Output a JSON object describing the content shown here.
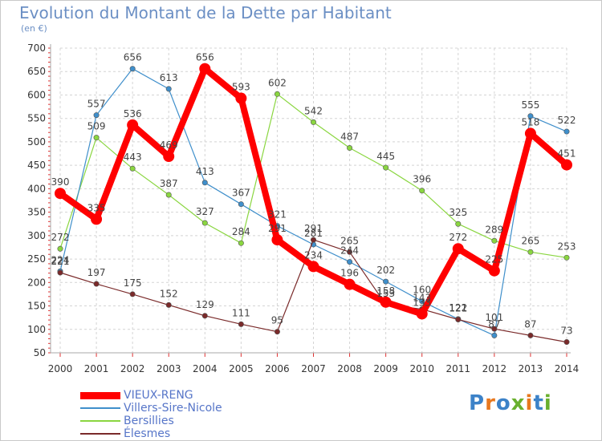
{
  "header": {
    "title": "Evolution du Montant de la Dette par Habitant",
    "unit": "(en €)"
  },
  "logo": {
    "text": "Proxiti",
    "colors": [
      "#3c82c8",
      "#e8781e",
      "#3c82c8",
      "#6ab02e",
      "#e8781e",
      "#3c82c8",
      "#6ab02e"
    ]
  },
  "chart_data": {
    "type": "line",
    "title": "Evolution du Montant de la Dette par Habitant",
    "ylabel": "(en €)",
    "xlabel": "",
    "x": [
      "2000",
      "2001",
      "2002",
      "2003",
      "2004",
      "2005",
      "2006",
      "2007",
      "2008",
      "2009",
      "2010",
      "2011",
      "2012",
      "2013",
      "2014"
    ],
    "ylim": [
      50,
      700
    ],
    "yticks": [
      50,
      100,
      150,
      200,
      250,
      300,
      350,
      400,
      450,
      500,
      550,
      600,
      650,
      700
    ],
    "grid": true,
    "legend_position": "bottom-left",
    "series": [
      {
        "name": "VIEUX-RENG",
        "color": "#ff0000",
        "values": [
          390,
          335,
          536,
          469,
          656,
          593,
          291,
          234,
          196,
          158,
          133,
          272,
          225,
          518,
          451
        ]
      },
      {
        "name": "Villers-Sire-Nicole",
        "color": "#3f8fcb",
        "values": [
          224,
          557,
          656,
          613,
          413,
          367,
          321,
          281,
          244,
          202,
          160,
          122,
          87,
          555,
          522
        ]
      },
      {
        "name": "Bersillies",
        "color": "#8ad640",
        "values": [
          272,
          509,
          443,
          387,
          327,
          284,
          602,
          542,
          487,
          445,
          396,
          325,
          289,
          265,
          253
        ]
      },
      {
        "name": "Élesmes",
        "color": "#7a2a2a",
        "values": [
          221,
          197,
          175,
          152,
          129,
          111,
          95,
          291,
          265,
          153,
          143,
          121,
          101,
          87,
          73
        ]
      }
    ]
  }
}
